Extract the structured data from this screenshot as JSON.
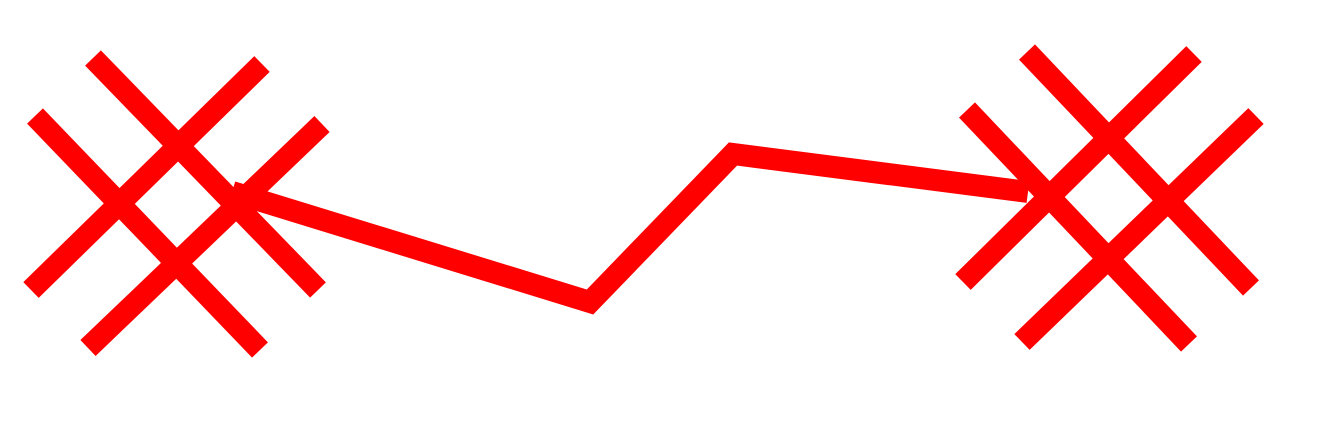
{
  "diagram": {
    "background": "#ffffff",
    "stroke_color": "#ff0000",
    "elements": [
      {
        "kind": "cross-hatch-mark",
        "icon": "double-x-icon"
      },
      {
        "kind": "zigzag-connector",
        "icon": "polyline"
      },
      {
        "kind": "cross-hatch-mark",
        "icon": "double-x-icon"
      }
    ]
  }
}
